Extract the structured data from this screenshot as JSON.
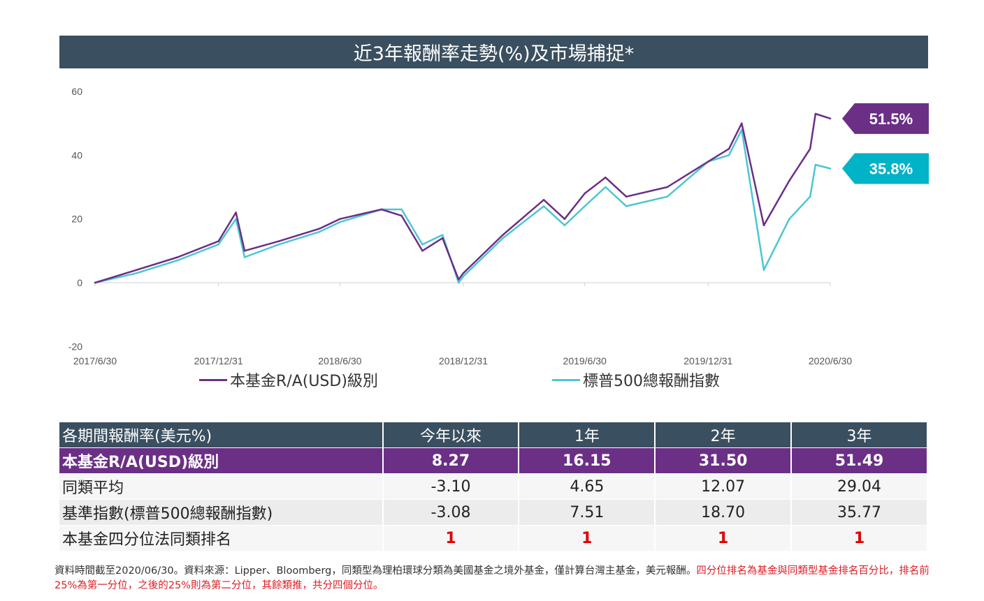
{
  "title": "近3年報酬率走勢(%)及市場捕捉*",
  "chart_data": {
    "type": "line",
    "ylim": [
      -20,
      60
    ],
    "yticks": [
      "60",
      "40",
      "20",
      "0",
      "-20"
    ],
    "x_tick_labels": [
      "2017/6/30",
      "2017/12/31",
      "2018/6/30",
      "2018/12/31",
      "2019/6/30",
      "2019/12/31",
      "2020/6/30"
    ],
    "x": [
      "2017/6/30",
      "2017/8/31",
      "2017/10/31",
      "2017/12/31",
      "2018/1/26",
      "2018/2/8",
      "2018/3/31",
      "2018/5/31",
      "2018/6/30",
      "2018/8/31",
      "2018/9/30",
      "2018/10/31",
      "2018/11/30",
      "2018/12/24",
      "2018/12/31",
      "2019/2/28",
      "2019/4/30",
      "2019/5/31",
      "2019/6/30",
      "2019/7/31",
      "2019/8/31",
      "2019/10/31",
      "2019/12/31",
      "2020/1/31",
      "2020/2/19",
      "2020/3/23",
      "2020/4/30",
      "2020/5/31",
      "2020/6/8",
      "2020/6/30"
    ],
    "series": [
      {
        "name": "本基金R/A(USD)級別",
        "color": "#6b2f86",
        "values": [
          0,
          4,
          8,
          13,
          22,
          10,
          13,
          17,
          20,
          23,
          21,
          10,
          14,
          1,
          3,
          15,
          26,
          20,
          28,
          33,
          27,
          30,
          38,
          42,
          50,
          18,
          32,
          42,
          53,
          51.5
        ],
        "end_label": "51.5%"
      },
      {
        "name": "標普500總報酬指數",
        "color": "#4cc6d2",
        "values": [
          0,
          3,
          7,
          12,
          20,
          8,
          12,
          16,
          19,
          23,
          23,
          12,
          15,
          0,
          2,
          14,
          24,
          18,
          24,
          30,
          24,
          27,
          38,
          40,
          48,
          4,
          20,
          27,
          37,
          35.8
        ],
        "end_label": "35.8%"
      }
    ]
  },
  "legend": {
    "fund": "本基金R/A(USD)級別",
    "index": "標普500總報酬指數"
  },
  "table": {
    "headers": [
      "各期間報酬率(美元%)",
      "今年以來",
      "1年",
      "2年",
      "3年"
    ],
    "rows": [
      {
        "label": "本基金R/A(USD)級別",
        "values": [
          "8.27",
          "16.15",
          "31.50",
          "51.49"
        ]
      },
      {
        "label": "同類平均",
        "values": [
          "-3.10",
          "4.65",
          "12.07",
          "29.04"
        ]
      },
      {
        "label": "基準指數(標普500總報酬指數)",
        "values": [
          "-3.08",
          "7.51",
          "18.70",
          "35.77"
        ]
      },
      {
        "label": "本基金四分位法同類排名",
        "values": [
          "1",
          "1",
          "1",
          "1"
        ]
      }
    ]
  },
  "footnote": {
    "black": "資料時間截至2020/06/30。資料來源：Lipper、Bloomberg，同類型為理柏環球分類為美國基金之境外基金，僅計算台灣主基金，美元報酬。",
    "red": "四分位排名為基金與同類型基金排名百分比，排名前25%為第一分位，之後的25%則為第二分位，其餘類推，共分四個分位。"
  }
}
